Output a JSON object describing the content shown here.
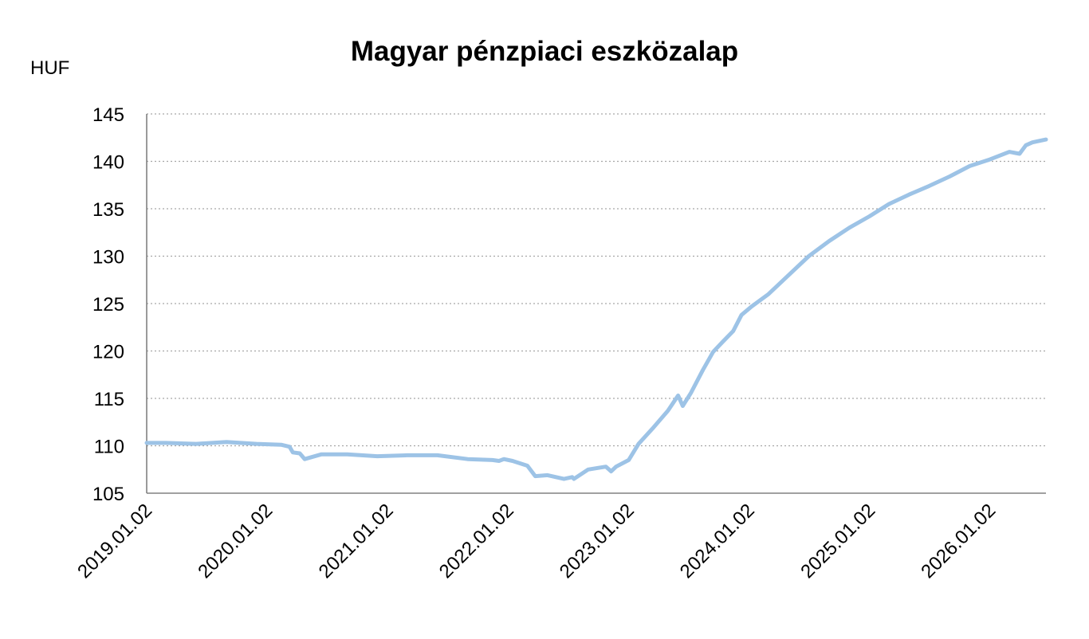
{
  "chart_data": {
    "type": "line",
    "title": "Magyar pénzpiaci eszközalap",
    "ylabel": "HUF",
    "xlabel": "",
    "ylim": [
      105,
      145
    ],
    "yticks": [
      105,
      110,
      115,
      120,
      125,
      130,
      135,
      140,
      145
    ],
    "xlim": [
      "2019-01-02",
      "2026-06-20"
    ],
    "xtick_labels": [
      "2019.01.02",
      "2020.01.02",
      "2021.01.02",
      "2022.01.02",
      "2023.01.02",
      "2024.01.02",
      "2025.01.02",
      "2026.01.02"
    ],
    "xtick_dates": [
      "2019-01-02",
      "2020-01-02",
      "2021-01-02",
      "2022-01-02",
      "2023-01-02",
      "2024-01-02",
      "2025-01-02",
      "2026-01-02"
    ],
    "grid": true,
    "legend": false,
    "line_color": "#9dc3e6",
    "series": [
      {
        "x": [
          "2019-01-02",
          "2019-03-01",
          "2019-06-01",
          "2019-09-01",
          "2019-12-01",
          "2020-02-15",
          "2020-03-10",
          "2020-03-20",
          "2020-04-10",
          "2020-04-25",
          "2020-06-15",
          "2020-09-01",
          "2020-12-01",
          "2021-03-01",
          "2021-06-01",
          "2021-09-01",
          "2021-11-15",
          "2021-12-05",
          "2021-12-20",
          "2022-01-15",
          "2022-03-01",
          "2022-03-25",
          "2022-05-01",
          "2022-06-20",
          "2022-07-15",
          "2022-07-20",
          "2022-09-01",
          "2022-10-25",
          "2022-11-10",
          "2022-11-25",
          "2023-01-02",
          "2023-02-01",
          "2023-03-15",
          "2023-05-01",
          "2023-06-01",
          "2023-06-15",
          "2023-07-10",
          "2023-08-15",
          "2023-09-15",
          "2023-10-15",
          "2023-11-15",
          "2023-12-10",
          "2024-01-10",
          "2024-03-01",
          "2024-05-01",
          "2024-07-01",
          "2024-09-01",
          "2024-11-01",
          "2025-01-01",
          "2025-03-01",
          "2025-05-01",
          "2025-07-01",
          "2025-09-01",
          "2025-11-01",
          "2026-01-01",
          "2026-03-01",
          "2026-04-01",
          "2026-04-20",
          "2026-05-10",
          "2026-06-20"
        ],
        "values": [
          110.3,
          110.3,
          110.2,
          110.4,
          110.2,
          110.1,
          109.9,
          109.3,
          109.2,
          108.6,
          109.1,
          109.1,
          108.9,
          109.0,
          109.0,
          108.6,
          108.5,
          108.4,
          108.6,
          108.4,
          107.9,
          106.8,
          106.9,
          106.5,
          106.7,
          106.5,
          107.5,
          107.8,
          107.3,
          107.8,
          108.5,
          110.2,
          111.8,
          113.7,
          115.3,
          114.2,
          115.6,
          118.0,
          119.9,
          121.0,
          122.1,
          123.8,
          124.7,
          126.0,
          128.0,
          130.0,
          131.6,
          133.0,
          134.2,
          135.5,
          136.5,
          137.4,
          138.4,
          139.5,
          140.2,
          141.0,
          140.8,
          141.7,
          142.0,
          142.3
        ]
      }
    ]
  }
}
